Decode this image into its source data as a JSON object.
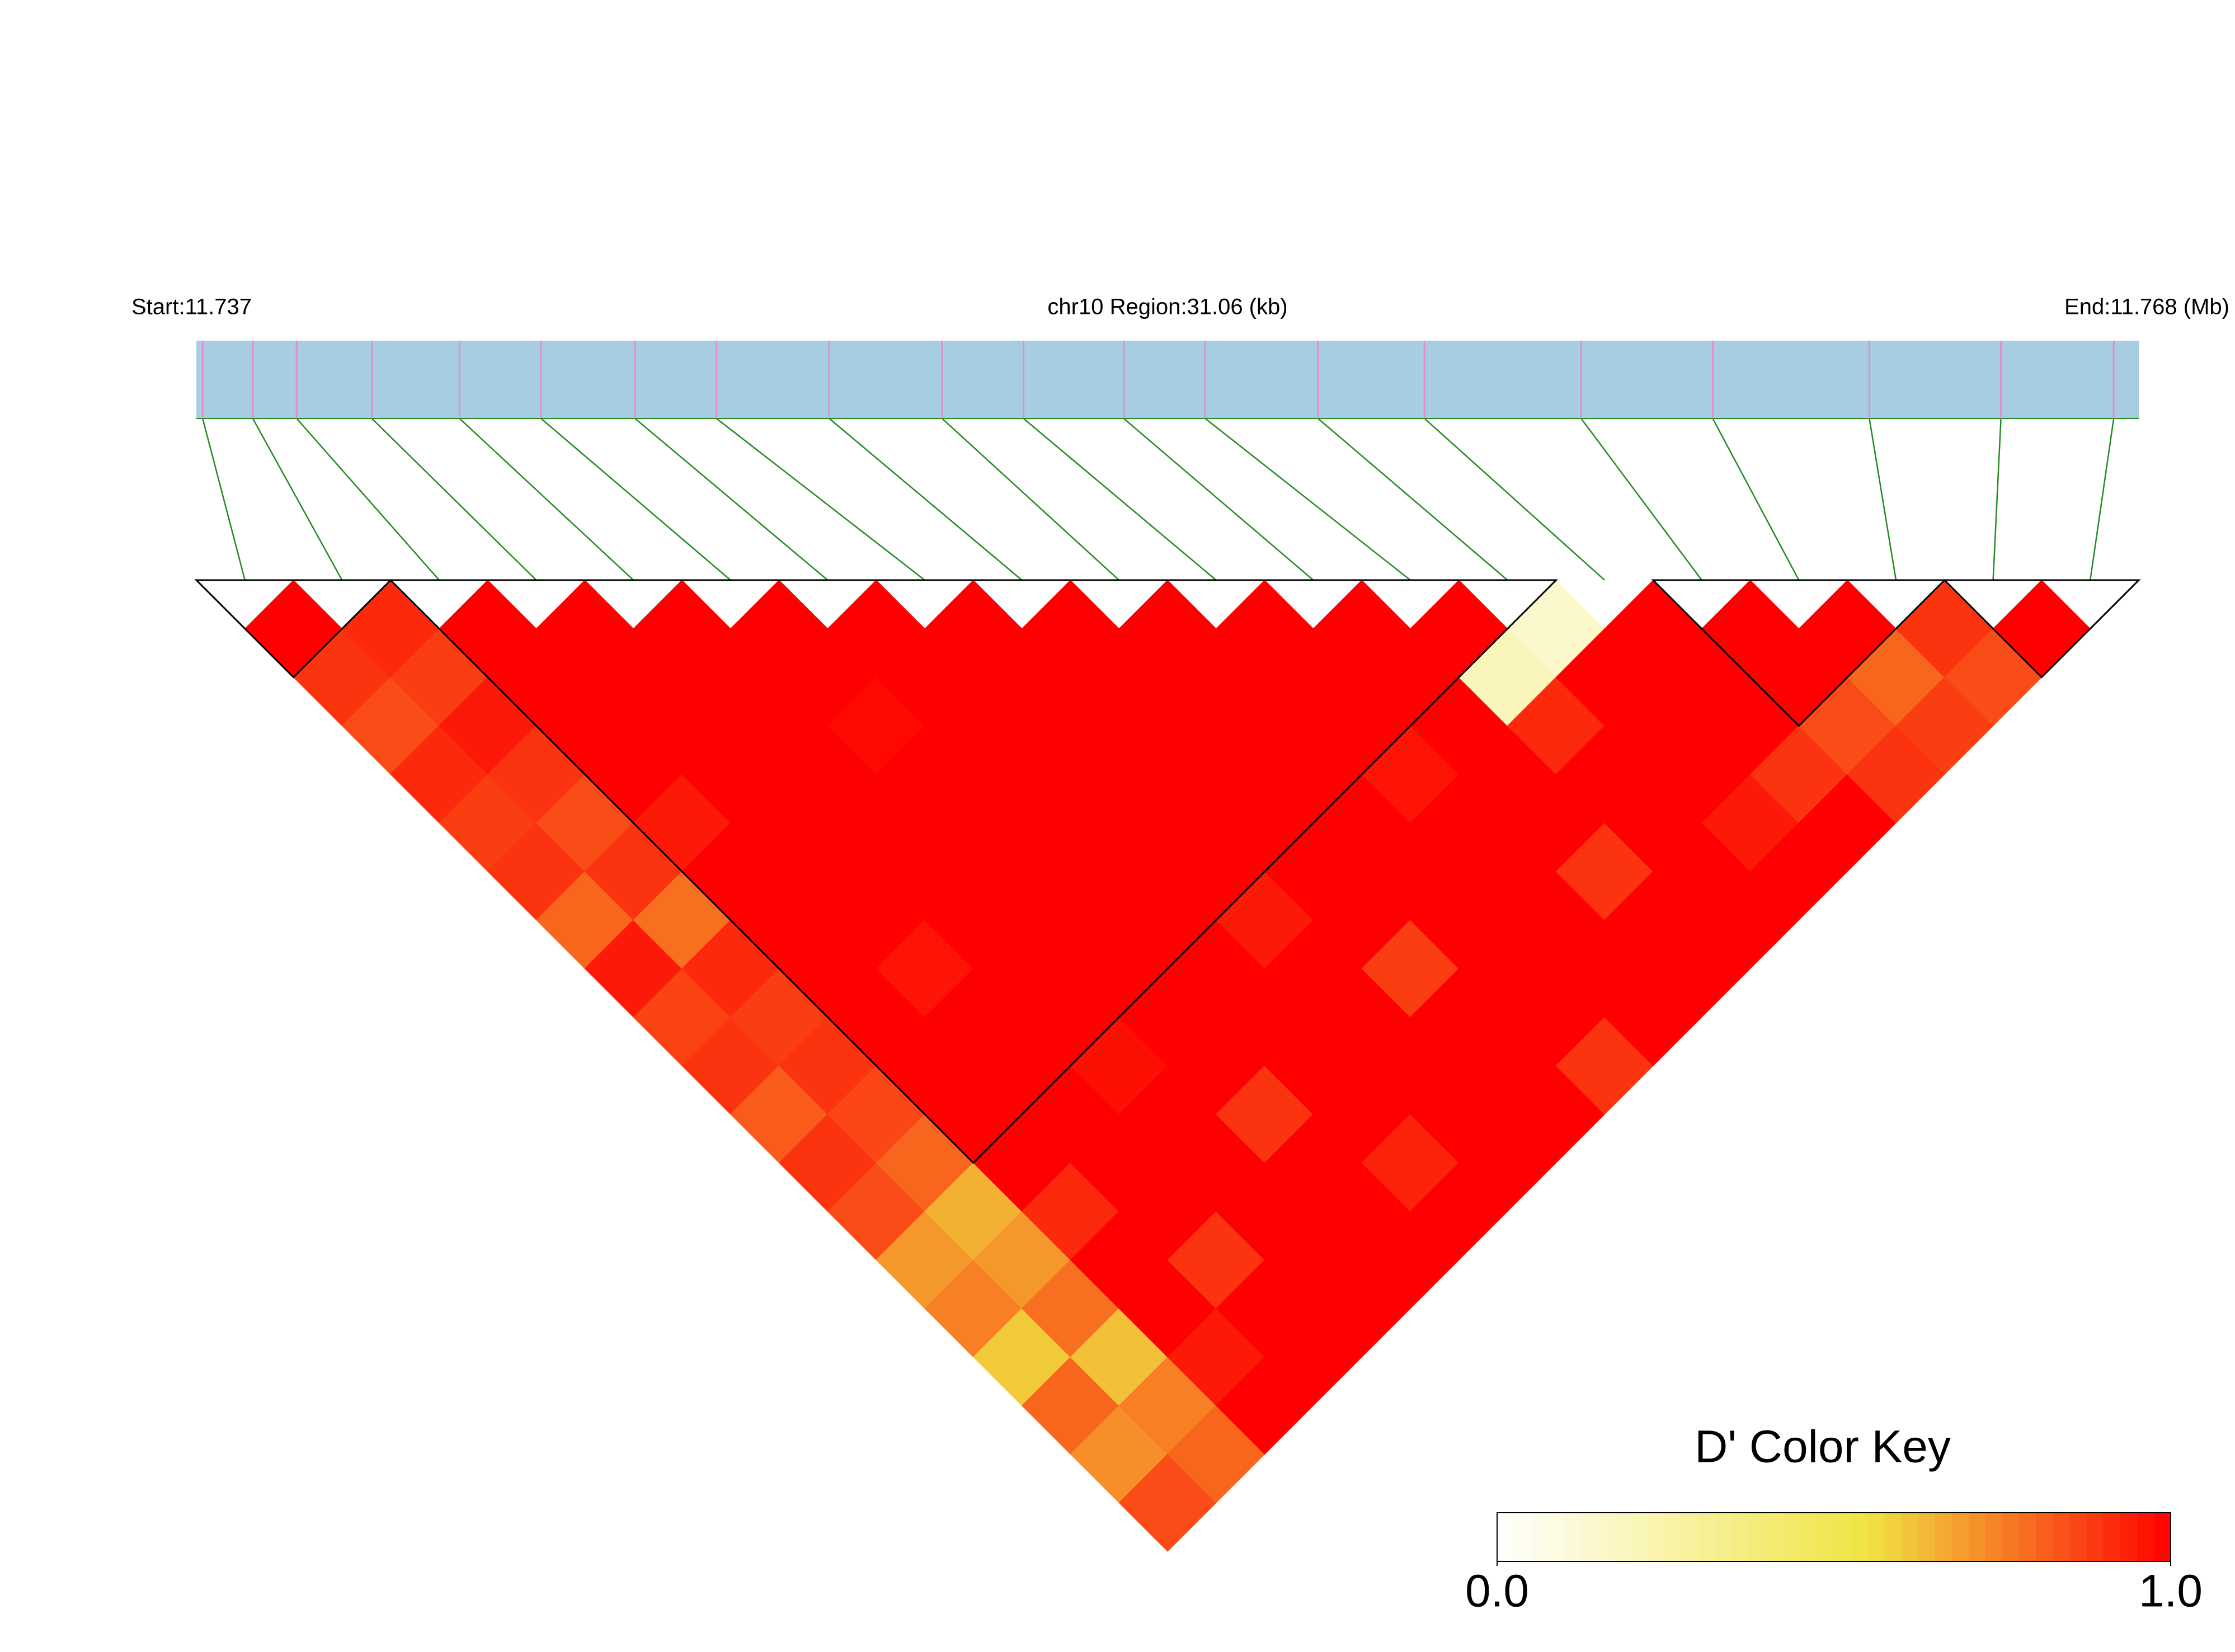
{
  "chart_data": {
    "type": "ld_heatmap",
    "title": "chr10 Region:31.06 (kb)",
    "start_label": "Start:11.737",
    "end_label": "End:11.768 (Mb)",
    "xlim": [
      11.737,
      11.768
    ],
    "snp_positions": [
      11.7371,
      11.7379,
      11.7386,
      11.7398,
      11.7412,
      11.7425,
      11.744,
      11.7453,
      11.7471,
      11.7489,
      11.7502,
      11.7518,
      11.7531,
      11.7549,
      11.7566,
      11.7591,
      11.7612,
      11.7637,
      11.7658,
      11.7676
    ],
    "dprime": [
      [
        1,
        0.9,
        0.85,
        0.92,
        0.88,
        0.9,
        0.8,
        0.95,
        0.87,
        0.9,
        0.82,
        0.9,
        0.85,
        0.7,
        0.75,
        0.6,
        0.8,
        0.72,
        0.85
      ],
      [
        0.92,
        0.88,
        0.95,
        0.9,
        0.85,
        0.9,
        0.78,
        0.92,
        0.88,
        0.9,
        0.86,
        0.8,
        0.65,
        0.7,
        0.78,
        0.62,
        0.75,
        0.8
      ],
      [
        1,
        1,
        1,
        1,
        0.95,
        1,
        1,
        1,
        1,
        1,
        1,
        1,
        0.92,
        1,
        1,
        0.95,
        1
      ],
      [
        1,
        1,
        1,
        1,
        1,
        1,
        1,
        0.96,
        1,
        1,
        1,
        1,
        1,
        0.9,
        1,
        1
      ],
      [
        1,
        1,
        1,
        1,
        1,
        1,
        1,
        1,
        1,
        0.97,
        1,
        1,
        1,
        1,
        1
      ],
      [
        1,
        1,
        0.98,
        1,
        1,
        1,
        1,
        1,
        1,
        1,
        0.9,
        1,
        1,
        1
      ],
      [
        1,
        1,
        1,
        1,
        1,
        1,
        1,
        1,
        1,
        1,
        1,
        0.93,
        1
      ],
      [
        1,
        1,
        1,
        1,
        1,
        1,
        0.95,
        1,
        1,
        1,
        1,
        1
      ],
      [
        1,
        1,
        1,
        1,
        1,
        1,
        1,
        0.88,
        1,
        1,
        1
      ],
      [
        1,
        1,
        1,
        1,
        1,
        1,
        1,
        1,
        1,
        0.9
      ],
      [
        1,
        1,
        1,
        0.96,
        1,
        1,
        1,
        1,
        1
      ],
      [
        1,
        1,
        1,
        1,
        1,
        0.9,
        1,
        1
      ],
      [
        1,
        0.2,
        0.92,
        1,
        1,
        1,
        1
      ],
      [
        0.15,
        1,
        1,
        1,
        0.95,
        1
      ],
      [
        1,
        1,
        1,
        0.9,
        1
      ],
      [
        1,
        1,
        0.85,
        0.9
      ],
      [
        1,
        0.8,
        0.88
      ],
      [
        0.9,
        0.85
      ],
      [
        1
      ]
    ],
    "blocks": [
      [
        0,
        1
      ],
      [
        2,
        13
      ],
      [
        15,
        17
      ],
      [
        18,
        19
      ]
    ],
    "bar_color": "#a6cde2",
    "snp_color": "#e98bc4",
    "connector_color": "#228b22",
    "colorbar": {
      "title": "D' Color Key",
      "lim": [
        0,
        1
      ],
      "ticks": [
        {
          "value": 0,
          "label": "0.0"
        },
        {
          "value": 1,
          "label": "1.0"
        }
      ],
      "colors": [
        "#ffffff",
        "#f0e442",
        "#ff0000"
      ],
      "stops": [
        0,
        0.55,
        1
      ]
    }
  }
}
